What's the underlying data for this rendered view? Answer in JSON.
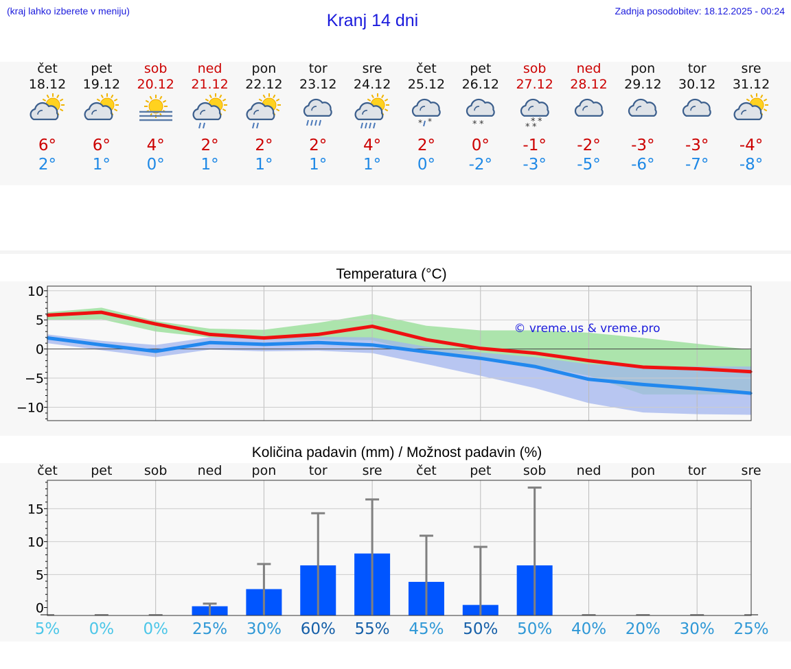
{
  "header": {
    "hint": "(kraj lahko izberete v meniju)",
    "title": "Kranj 14 dni",
    "updated": "Zadnja posodobitev: 18.12.2025 - 00:24"
  },
  "colors": {
    "title_blue": "#1a1adc",
    "weekend_red": "#cc0000",
    "max_temp_red": "#cc0000",
    "min_temp_blue": "#1e88e5",
    "max_line": "#ee1111",
    "min_line": "#2288ee",
    "max_band": "#9fe09f",
    "min_band": "#9fb3ee",
    "bar_blue": "#0055ff",
    "error_bar": "#808080"
  },
  "days": [
    {
      "name": "čet",
      "date": "18.12",
      "weekend": false,
      "icon": "sun-cloud-icon",
      "tmax": "6°",
      "tmin": "2°"
    },
    {
      "name": "pet",
      "date": "19.12",
      "weekend": false,
      "icon": "sun-cloud-icon",
      "tmax": "6°",
      "tmin": "1°"
    },
    {
      "name": "sob",
      "date": "20.12",
      "weekend": true,
      "icon": "sun-fog-icon",
      "tmax": "4°",
      "tmin": "0°"
    },
    {
      "name": "ned",
      "date": "21.12",
      "weekend": true,
      "icon": "sun-cloud-light-rain-icon",
      "tmax": "2°",
      "tmin": "1°"
    },
    {
      "name": "pon",
      "date": "22.12",
      "weekend": false,
      "icon": "sun-cloud-light-rain-icon",
      "tmax": "2°",
      "tmin": "1°"
    },
    {
      "name": "tor",
      "date": "23.12",
      "weekend": false,
      "icon": "cloud-rain-icon",
      "tmax": "2°",
      "tmin": "1°"
    },
    {
      "name": "sre",
      "date": "24.12",
      "weekend": false,
      "icon": "sun-cloud-rain-icon",
      "tmax": "4°",
      "tmin": "1°"
    },
    {
      "name": "čet",
      "date": "25.12",
      "weekend": false,
      "icon": "cloud-sleet-icon",
      "tmax": "2°",
      "tmin": "0°"
    },
    {
      "name": "pet",
      "date": "26.12",
      "weekend": false,
      "icon": "cloud-light-snow-icon",
      "tmax": "0°",
      "tmin": "-2°"
    },
    {
      "name": "sob",
      "date": "27.12",
      "weekend": true,
      "icon": "cloud-snow-icon",
      "tmax": "-1°",
      "tmin": "-3°"
    },
    {
      "name": "ned",
      "date": "28.12",
      "weekend": true,
      "icon": "cloud-icon",
      "tmax": "-2°",
      "tmin": "-5°"
    },
    {
      "name": "pon",
      "date": "29.12",
      "weekend": false,
      "icon": "cloud-icon",
      "tmax": "-3°",
      "tmin": "-6°"
    },
    {
      "name": "tor",
      "date": "30.12",
      "weekend": false,
      "icon": "cloud-icon",
      "tmax": "-3°",
      "tmin": "-7°"
    },
    {
      "name": "sre",
      "date": "31.12",
      "weekend": false,
      "icon": "sun-cloud-icon",
      "tmax": "-4°",
      "tmin": "-8°"
    }
  ],
  "chart_data": [
    {
      "type": "line",
      "title": "Temperatura (°C)",
      "xlabel": "",
      "ylabel": "",
      "ylim": [
        -12.3,
        10.8
      ],
      "yticks": [
        10,
        5,
        0,
        -5,
        -10
      ],
      "ytick_labels": [
        "10",
        "5",
        "0",
        "−5",
        "−10"
      ],
      "x_days": [
        "čet",
        "pet",
        "sob",
        "ned",
        "pon",
        "tor",
        "sre",
        "čet",
        "pet",
        "sob",
        "ned",
        "pon",
        "tor",
        "sre"
      ],
      "watermark": "© vreme.us & vreme.pro",
      "series": [
        {
          "name": "max",
          "values": [
            5.8,
            6.3,
            4.3,
            2.5,
            1.9,
            2.5,
            3.9,
            1.6,
            0.1,
            -0.7,
            -2.0,
            -3.1,
            -3.4,
            -3.9
          ]
        },
        {
          "name": "min",
          "values": [
            1.9,
            0.7,
            -0.4,
            1.1,
            0.8,
            1.1,
            0.7,
            -0.5,
            -1.6,
            -3.0,
            -5.2,
            -6.1,
            -6.8,
            -7.6
          ]
        }
      ],
      "bands": [
        {
          "name": "max_range",
          "upper": [
            6.3,
            7.1,
            4.8,
            3.5,
            3.3,
            4.5,
            6.0,
            4.0,
            3.2,
            3.2,
            2.8,
            1.9,
            0.9,
            -0.1
          ],
          "lower": [
            5.0,
            5.1,
            3.0,
            2.0,
            1.6,
            1.6,
            1.5,
            -0.8,
            -1.3,
            -2.8,
            -4.6,
            -7.8,
            -7.8,
            -7.8
          ]
        },
        {
          "name": "min_range",
          "upper": [
            2.5,
            1.4,
            0.7,
            2.0,
            1.9,
            2.1,
            2.0,
            0.4,
            -0.6,
            -1.4,
            -2.6,
            -3.0,
            -3.0,
            -3.0
          ],
          "lower": [
            1.0,
            -0.2,
            -1.4,
            -0.1,
            -0.4,
            -0.3,
            -0.7,
            -2.6,
            -4.6,
            -6.7,
            -9.3,
            -10.9,
            -11.2,
            -11.3
          ]
        }
      ]
    },
    {
      "type": "bar",
      "title": "Količina padavin (mm) / Možnost padavin (%)",
      "ylim": [
        -1.2,
        19.3
      ],
      "yticks": [
        15,
        10,
        5,
        0
      ],
      "ytick_labels": [
        "15",
        "10",
        "5",
        "0"
      ],
      "categories": [
        "čet",
        "pet",
        "sob",
        "ned",
        "pon",
        "tor",
        "sre",
        "čet",
        "pet",
        "sob",
        "ned",
        "pon",
        "tor",
        "sre"
      ],
      "values": [
        0,
        0,
        0,
        0.2,
        2.8,
        6.4,
        8.2,
        3.9,
        0.4,
        6.4,
        0,
        0,
        0,
        0
      ],
      "error_upper": [
        0,
        0,
        0,
        0.6,
        6.6,
        14.3,
        16.4,
        10.9,
        9.2,
        18.2,
        0,
        0,
        0,
        0
      ],
      "chance": [
        "5%",
        "0%",
        "0%",
        "25%",
        "30%",
        "60%",
        "55%",
        "45%",
        "50%",
        "50%",
        "40%",
        "20%",
        "30%",
        "25%"
      ],
      "chance_colors": [
        "#4cc6e8",
        "#4cc6e8",
        "#4cc6e8",
        "#2f98d6",
        "#2f98d6",
        "#155fa8",
        "#155fa8",
        "#2f98d6",
        "#155fa8",
        "#2f98d6",
        "#2f98d6",
        "#2f98d6",
        "#2f98d6",
        "#2f98d6"
      ]
    }
  ]
}
